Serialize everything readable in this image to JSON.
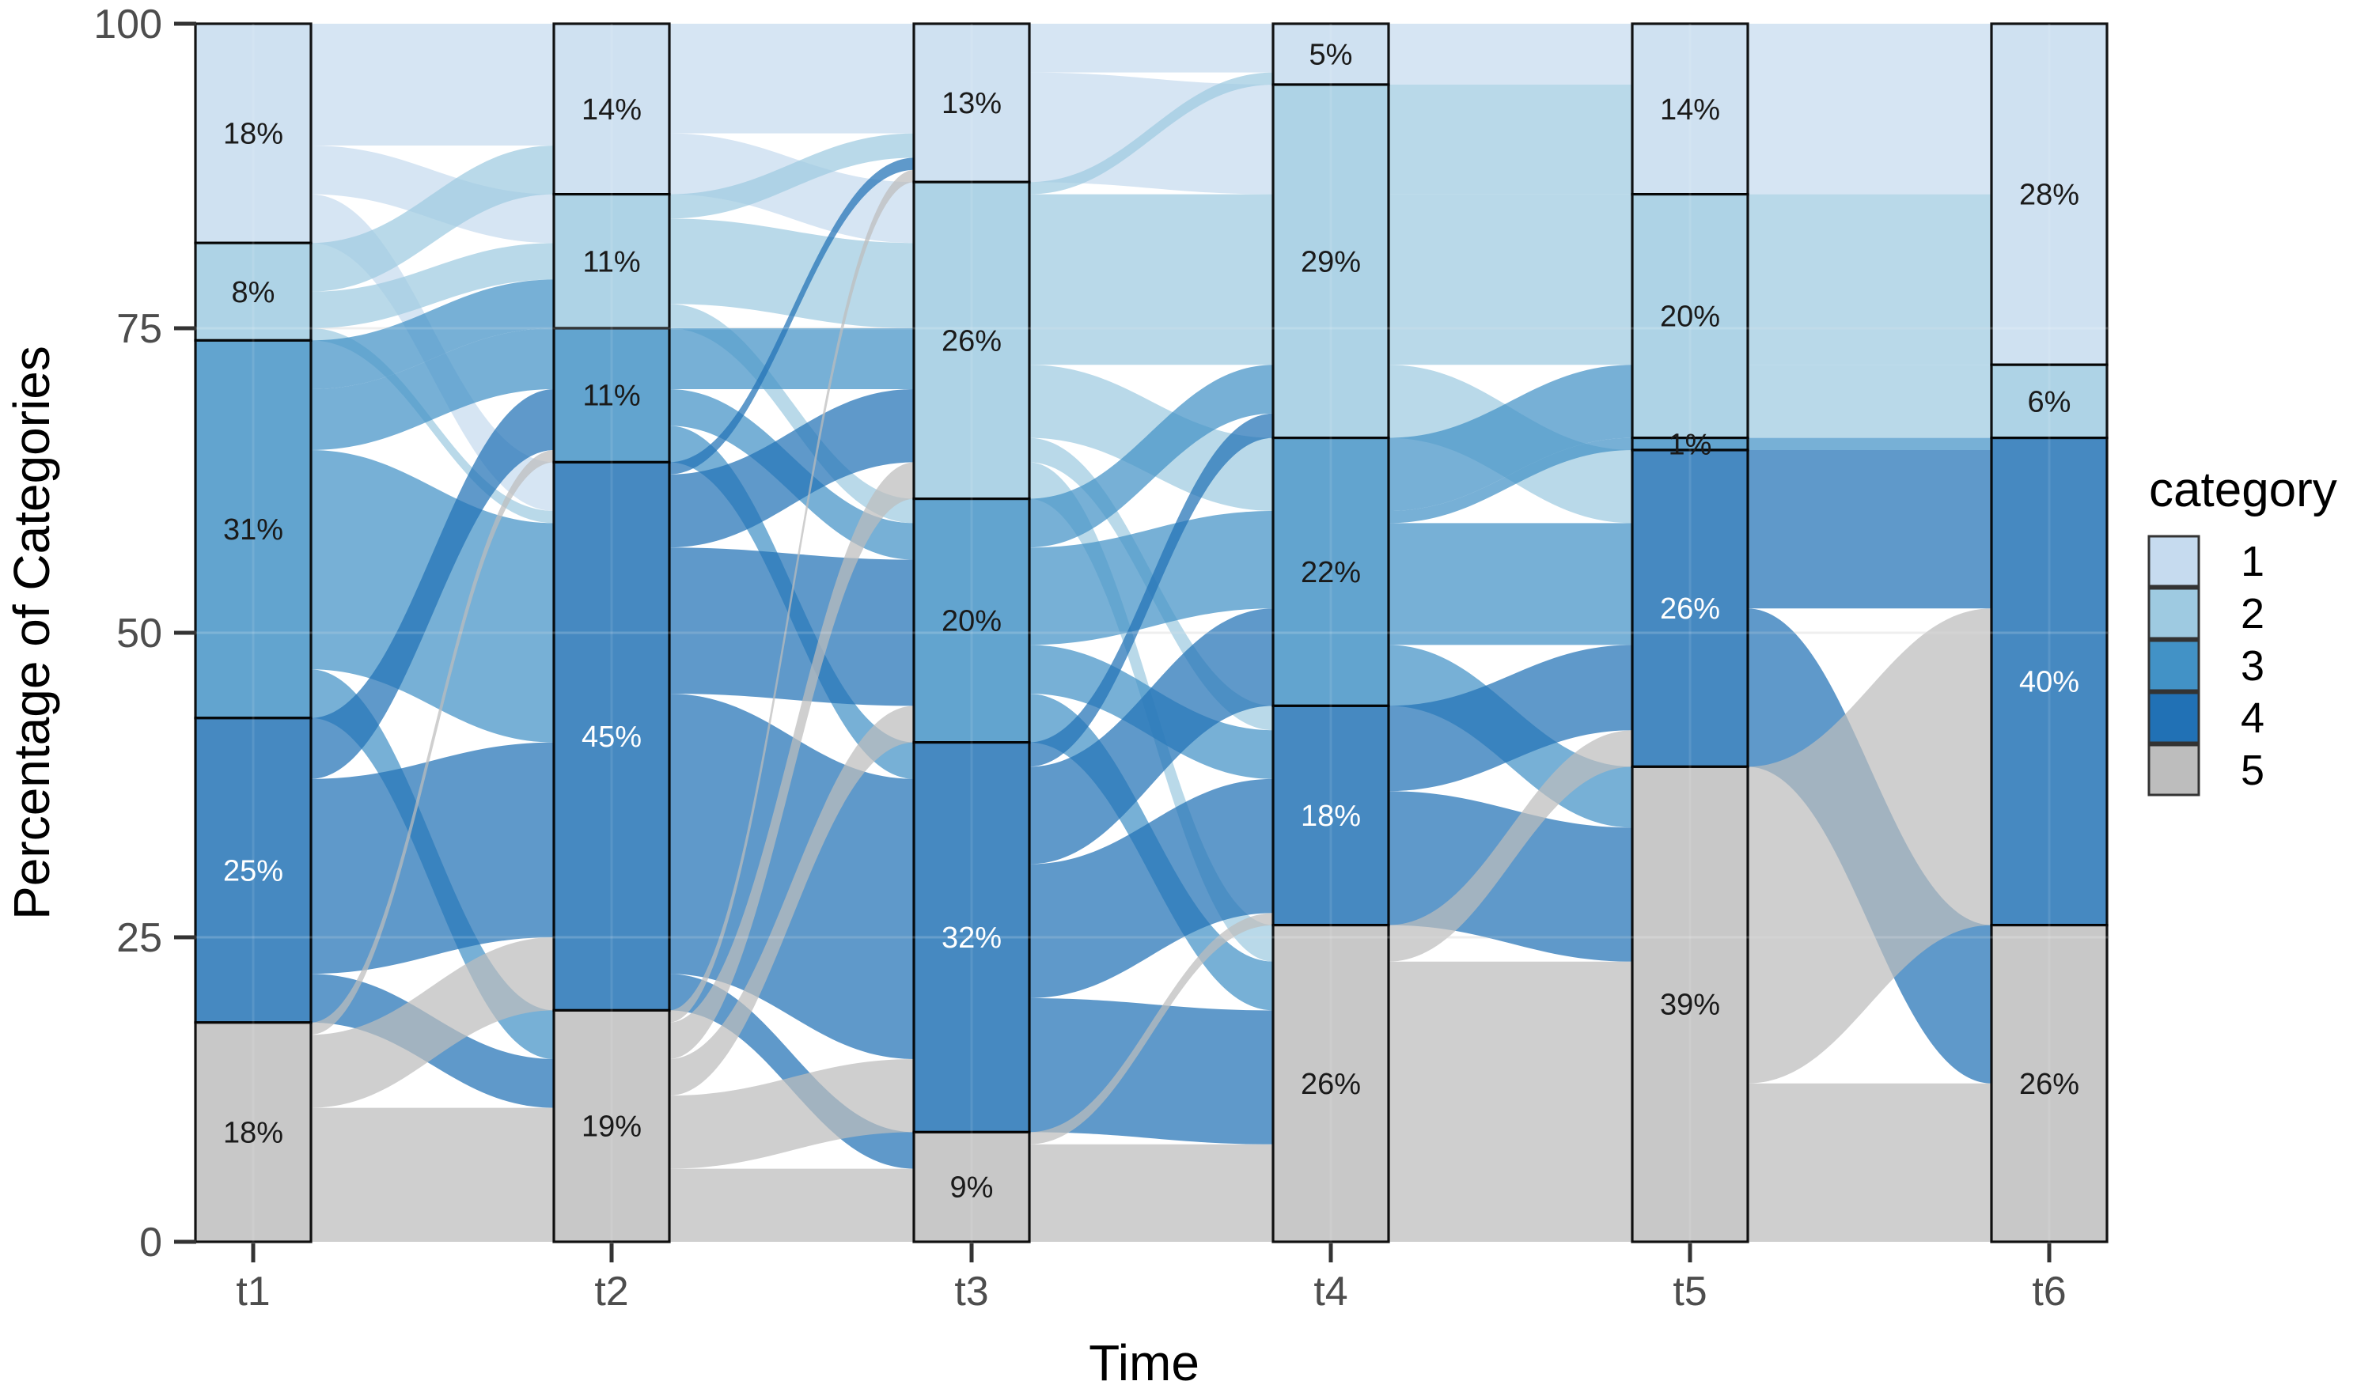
{
  "chart_data": {
    "type": "alluvial",
    "xlabel": "Time",
    "ylabel": "Percentage of Categories",
    "x_categories": [
      "t1",
      "t2",
      "t3",
      "t4",
      "t5",
      "t6"
    ],
    "y_ticks": [
      {
        "label": "0",
        "value": 0
      },
      {
        "label": "25",
        "value": 25
      },
      {
        "label": "50",
        "value": 50
      },
      {
        "label": "75",
        "value": 75
      },
      {
        "label": "100",
        "value": 100
      }
    ],
    "ylim": [
      0,
      100
    ],
    "legend": {
      "title": "category",
      "position": "right",
      "entries": [
        {
          "label": "1",
          "color": "#C6DBEF"
        },
        {
          "label": "2",
          "color": "#9ECAE1"
        },
        {
          "label": "3",
          "color": "#4292C6"
        },
        {
          "label": "4",
          "color": "#2171B5"
        },
        {
          "label": "5",
          "color": "#BDBDBD"
        }
      ]
    },
    "strata": [
      {
        "axis": "t1",
        "values": [
          18,
          8,
          31,
          25,
          18
        ],
        "labels": [
          "18%",
          "8%",
          "31%",
          "25%",
          "18%"
        ]
      },
      {
        "axis": "t2",
        "values": [
          14,
          11,
          11,
          45,
          19
        ],
        "labels": [
          "14%",
          "11%",
          "11%",
          "45%",
          "19%"
        ]
      },
      {
        "axis": "t3",
        "values": [
          13,
          26,
          20,
          32,
          9
        ],
        "labels": [
          "13%",
          "26%",
          "20%",
          "32%",
          "9%"
        ]
      },
      {
        "axis": "t4",
        "values": [
          5,
          29,
          22,
          18,
          26
        ],
        "labels": [
          "5%",
          "29%",
          "22%",
          "18%",
          "26%"
        ]
      },
      {
        "axis": "t5",
        "values": [
          14,
          20,
          1,
          26,
          39
        ],
        "labels": [
          "14%",
          "20%",
          "1%",
          "26%",
          "39%"
        ]
      },
      {
        "axis": "t6",
        "values": [
          28,
          6,
          0,
          40,
          26
        ],
        "labels": [
          "28%",
          "6%",
          null,
          "40%",
          "26%"
        ]
      }
    ],
    "flows": [
      {
        "from": "t1",
        "to": "t2",
        "transitions": [
          [
            1,
            1,
            10
          ],
          [
            1,
            2,
            4
          ],
          [
            1,
            4,
            4
          ],
          [
            2,
            1,
            4
          ],
          [
            2,
            2,
            3
          ],
          [
            2,
            4,
            1
          ],
          [
            3,
            2,
            4
          ],
          [
            3,
            3,
            5
          ],
          [
            3,
            4,
            18
          ],
          [
            3,
            5,
            4
          ],
          [
            4,
            3,
            5
          ],
          [
            4,
            4,
            16
          ],
          [
            4,
            5,
            4
          ],
          [
            5,
            3,
            1
          ],
          [
            5,
            4,
            6
          ],
          [
            5,
            5,
            11
          ]
        ]
      },
      {
        "from": "t2",
        "to": "t3",
        "transitions": [
          [
            1,
            1,
            9
          ],
          [
            1,
            2,
            5
          ],
          [
            2,
            1,
            2
          ],
          [
            2,
            2,
            7
          ],
          [
            2,
            3,
            2
          ],
          [
            3,
            2,
            5
          ],
          [
            3,
            3,
            3
          ],
          [
            3,
            4,
            3
          ],
          [
            4,
            1,
            1
          ],
          [
            4,
            2,
            6
          ],
          [
            4,
            3,
            12
          ],
          [
            4,
            4,
            23
          ],
          [
            4,
            5,
            3
          ],
          [
            5,
            1,
            1
          ],
          [
            5,
            2,
            3
          ],
          [
            5,
            3,
            3
          ],
          [
            5,
            4,
            6
          ],
          [
            5,
            5,
            6
          ]
        ]
      },
      {
        "from": "t3",
        "to": "t4",
        "transitions": [
          [
            1,
            1,
            4
          ],
          [
            1,
            2,
            9
          ],
          [
            2,
            1,
            1
          ],
          [
            2,
            2,
            14
          ],
          [
            2,
            3,
            6
          ],
          [
            2,
            4,
            2
          ],
          [
            2,
            5,
            3
          ],
          [
            3,
            2,
            4
          ],
          [
            3,
            3,
            8
          ],
          [
            3,
            4,
            4
          ],
          [
            3,
            5,
            4
          ],
          [
            4,
            2,
            2
          ],
          [
            4,
            3,
            8
          ],
          [
            4,
            4,
            11
          ],
          [
            4,
            5,
            11
          ],
          [
            5,
            4,
            1
          ],
          [
            5,
            5,
            8
          ]
        ]
      },
      {
        "from": "t4",
        "to": "t5",
        "transitions": [
          [
            1,
            1,
            5
          ],
          [
            2,
            1,
            9
          ],
          [
            2,
            2,
            14
          ],
          [
            2,
            4,
            6
          ],
          [
            3,
            2,
            6
          ],
          [
            3,
            3,
            1
          ],
          [
            3,
            4,
            10
          ],
          [
            3,
            5,
            5
          ],
          [
            4,
            4,
            7
          ],
          [
            4,
            5,
            11
          ],
          [
            5,
            4,
            3
          ],
          [
            5,
            5,
            23
          ]
        ]
      },
      {
        "from": "t5",
        "to": "t6",
        "transitions": [
          [
            1,
            1,
            14
          ],
          [
            2,
            1,
            14
          ],
          [
            2,
            2,
            6
          ],
          [
            3,
            4,
            1
          ],
          [
            4,
            4,
            13
          ],
          [
            4,
            5,
            13
          ],
          [
            5,
            4,
            26
          ],
          [
            5,
            5,
            13
          ]
        ]
      }
    ],
    "style": {
      "stratum_colors": [
        "#CFE1F1",
        "#AED3E6",
        "#62A4CF",
        "#4689C1",
        "#C8C8C8"
      ],
      "flow_colors": [
        "#C6DBEF",
        "#9ECAE1",
        "#4292C6",
        "#2171B5",
        "#BDBDBD"
      ],
      "flow_opacity": 0.72,
      "stratum_border": "#000000",
      "label_color_dark": "#1A1A1A",
      "label_color_light": "#FFFFFF",
      "axis_text_color": "#4D4D4D",
      "axis_title_color": "#000000",
      "gridline_color": "#ECECEC"
    }
  }
}
